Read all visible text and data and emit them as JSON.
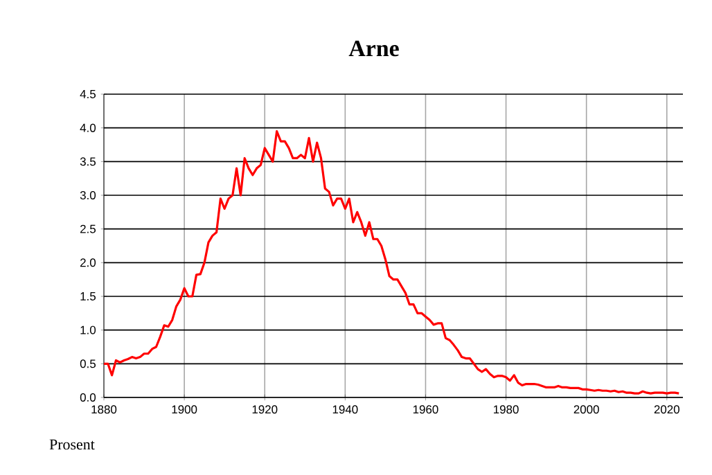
{
  "chart_data": {
    "type": "line",
    "title": "Arne",
    "ylabel": "Prosent",
    "x": [
      1880,
      1881,
      1882,
      1883,
      1884,
      1885,
      1886,
      1887,
      1888,
      1889,
      1890,
      1891,
      1892,
      1893,
      1894,
      1895,
      1896,
      1897,
      1898,
      1899,
      1900,
      1901,
      1902,
      1903,
      1904,
      1905,
      1906,
      1907,
      1908,
      1909,
      1910,
      1911,
      1912,
      1913,
      1914,
      1915,
      1916,
      1917,
      1918,
      1919,
      1920,
      1921,
      1922,
      1923,
      1924,
      1925,
      1926,
      1927,
      1928,
      1929,
      1930,
      1931,
      1932,
      1933,
      1934,
      1935,
      1936,
      1937,
      1938,
      1939,
      1940,
      1941,
      1942,
      1943,
      1944,
      1945,
      1946,
      1947,
      1948,
      1949,
      1950,
      1951,
      1952,
      1953,
      1954,
      1955,
      1956,
      1957,
      1958,
      1959,
      1960,
      1961,
      1962,
      1963,
      1964,
      1965,
      1966,
      1967,
      1968,
      1969,
      1970,
      1971,
      1972,
      1973,
      1974,
      1975,
      1976,
      1977,
      1978,
      1979,
      1980,
      1981,
      1982,
      1983,
      1984,
      1985,
      1986,
      1987,
      1988,
      1989,
      1990,
      1991,
      1992,
      1993,
      1994,
      1995,
      1996,
      1997,
      1998,
      1999,
      2000,
      2001,
      2002,
      2003,
      2004,
      2005,
      2006,
      2007,
      2008,
      2009,
      2010,
      2011,
      2012,
      2013,
      2014,
      2015,
      2016,
      2017,
      2018,
      2019,
      2020,
      2021,
      2022,
      2023
    ],
    "series": [
      {
        "color": "#ff0000",
        "values": [
          0.5,
          0.5,
          0.33,
          0.55,
          0.52,
          0.55,
          0.57,
          0.6,
          0.58,
          0.6,
          0.65,
          0.65,
          0.72,
          0.75,
          0.9,
          1.07,
          1.05,
          1.15,
          1.35,
          1.45,
          1.62,
          1.5,
          1.5,
          1.82,
          1.83,
          2.0,
          2.3,
          2.4,
          2.45,
          2.95,
          2.8,
          2.95,
          3.0,
          3.4,
          3.0,
          3.55,
          3.4,
          3.3,
          3.4,
          3.45,
          3.7,
          3.6,
          3.5,
          3.95,
          3.8,
          3.8,
          3.7,
          3.55,
          3.55,
          3.6,
          3.55,
          3.85,
          3.5,
          3.78,
          3.55,
          3.1,
          3.05,
          2.85,
          2.95,
          2.95,
          2.8,
          2.95,
          2.6,
          2.75,
          2.6,
          2.4,
          2.6,
          2.35,
          2.35,
          2.25,
          2.05,
          1.8,
          1.75,
          1.75,
          1.65,
          1.55,
          1.38,
          1.38,
          1.25,
          1.25,
          1.2,
          1.15,
          1.08,
          1.1,
          1.1,
          0.88,
          0.85,
          0.78,
          0.7,
          0.6,
          0.58,
          0.58,
          0.5,
          0.42,
          0.38,
          0.42,
          0.35,
          0.3,
          0.32,
          0.32,
          0.3,
          0.25,
          0.33,
          0.22,
          0.18,
          0.2,
          0.2,
          0.2,
          0.19,
          0.17,
          0.15,
          0.15,
          0.15,
          0.17,
          0.15,
          0.15,
          0.14,
          0.14,
          0.14,
          0.12,
          0.12,
          0.11,
          0.1,
          0.11,
          0.1,
          0.1,
          0.09,
          0.1,
          0.08,
          0.09,
          0.07,
          0.07,
          0.06,
          0.06,
          0.09,
          0.07,
          0.06,
          0.07,
          0.07,
          0.07,
          0.06,
          0.07,
          0.07,
          0.06
        ]
      }
    ],
    "xlim": [
      1880,
      2024
    ],
    "xticks": [
      1880,
      1900,
      1920,
      1940,
      1960,
      1980,
      2000,
      2020
    ],
    "ylim": [
      0,
      4.5
    ],
    "yticks": [
      {
        "value": 0,
        "label": "0.0"
      },
      {
        "value": 0.5,
        "label": "0.5"
      },
      {
        "value": 1,
        "label": "1.0"
      },
      {
        "value": 1.5,
        "label": "1.5"
      },
      {
        "value": 2,
        "label": "2.0"
      },
      {
        "value": 2.5,
        "label": "2.5"
      },
      {
        "value": 3,
        "label": "3.0"
      },
      {
        "value": 3.5,
        "label": "3.5"
      },
      {
        "value": 4,
        "label": "4.0"
      },
      {
        "value": 4.5,
        "label": "4.5"
      }
    ],
    "grid": true,
    "marker": "none",
    "line_style": "solid"
  }
}
